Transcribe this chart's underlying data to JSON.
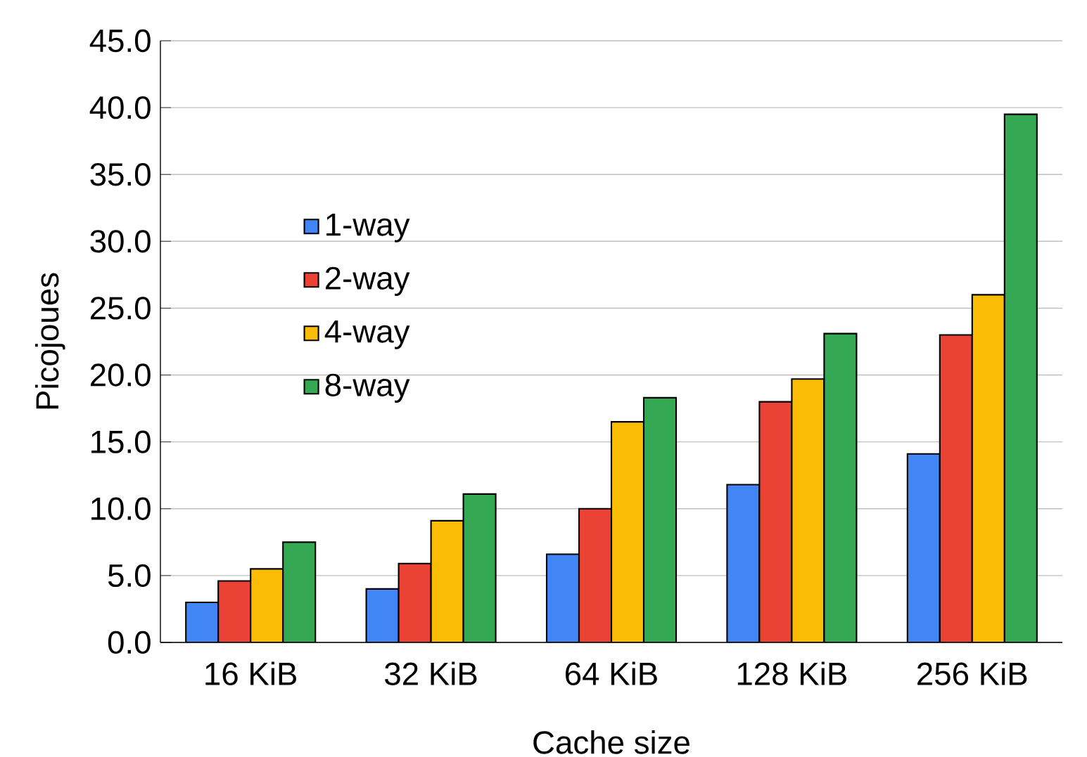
{
  "chart_data": {
    "type": "bar",
    "xlabel": "Cache size",
    "ylabel": "Picojoues",
    "categories": [
      "16 KiB",
      "32 KiB",
      "64 KiB",
      "128 KiB",
      "256 KiB"
    ],
    "series": [
      {
        "name": "1-way",
        "color": "#4285f4",
        "values": [
          3.0,
          4.0,
          6.6,
          11.8,
          14.1
        ]
      },
      {
        "name": "2-way",
        "color": "#ea4335",
        "values": [
          4.6,
          5.9,
          10.0,
          18.0,
          23.0
        ]
      },
      {
        "name": "4-way",
        "color": "#fbbc05",
        "values": [
          5.5,
          9.1,
          16.5,
          19.7,
          26.0
        ]
      },
      {
        "name": "8-way",
        "color": "#34a853",
        "values": [
          7.5,
          11.1,
          18.3,
          23.1,
          39.5
        ]
      }
    ],
    "ylim": [
      0,
      45
    ],
    "yticks": [
      {
        "value": 0,
        "label": "0.0"
      },
      {
        "value": 5,
        "label": "5.0"
      },
      {
        "value": 10,
        "label": "10.0"
      },
      {
        "value": 15,
        "label": "15.0"
      },
      {
        "value": 20,
        "label": "20.0"
      },
      {
        "value": 25,
        "label": "25.0"
      },
      {
        "value": 30,
        "label": "30.0"
      },
      {
        "value": 35,
        "label": "35.0"
      },
      {
        "value": 40,
        "label": "40.0"
      },
      {
        "value": 45,
        "label": "45.0"
      }
    ],
    "grid": "y",
    "legend": "left"
  }
}
